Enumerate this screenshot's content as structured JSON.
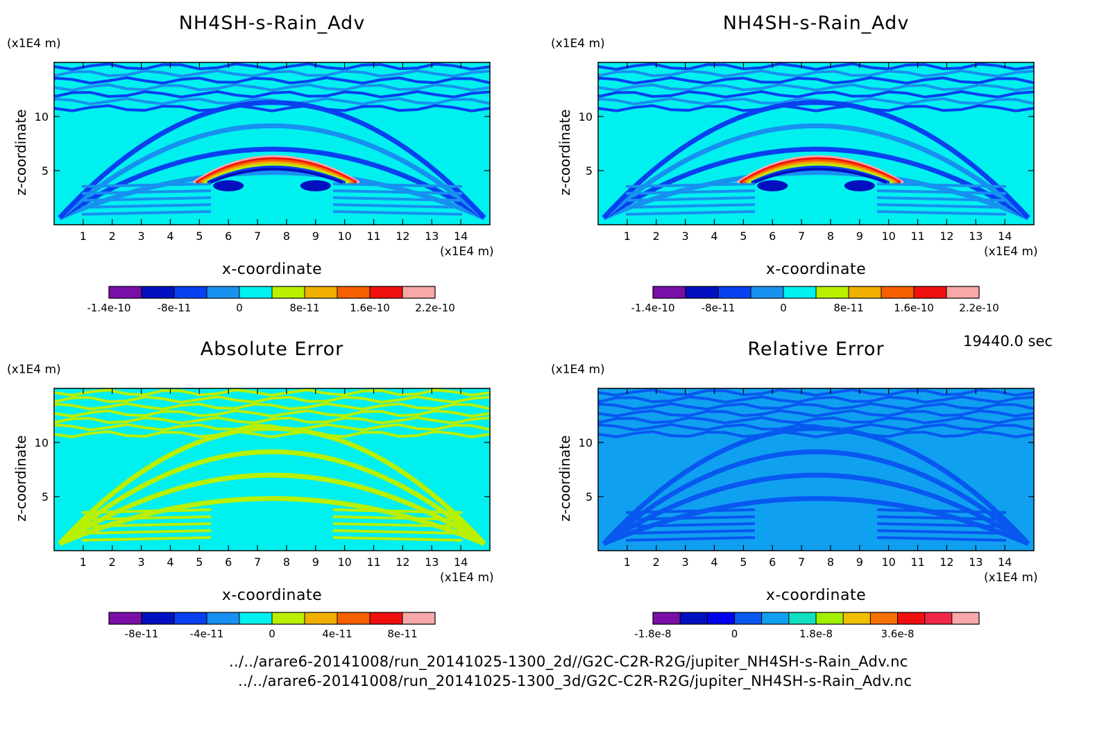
{
  "time_label": "19440.0 sec",
  "files": [
    "../../arare6-20141008/run_20141025-1300_2d//G2C-C2R-R2G/jupiter_NH4SH-s-Rain_Adv.nc",
    "../../arare6-20141008/run_20141025-1300_3d/G2C-C2R-R2G/jupiter_NH4SH-s-Rain_Adv.nc"
  ],
  "chart_data": [
    {
      "type": "heatmap",
      "title": "NH4SH-s-Rain_Adv",
      "xlabel": "x-coordinate",
      "ylabel": "z-coordinate",
      "x_unit": "(x1E4 m)",
      "y_unit": "(x1E4 m)",
      "xlim": [
        0,
        15
      ],
      "ylim": [
        0,
        15
      ],
      "x_ticks": [
        "1",
        "2",
        "3",
        "4",
        "5",
        "6",
        "7",
        "8",
        "9",
        "10",
        "11",
        "12",
        "13",
        "14"
      ],
      "y_ticks": [
        "5",
        "10"
      ],
      "colorbar": {
        "colors": [
          "#7a0fa8",
          "#0010c0",
          "#0840f0",
          "#1890f0",
          "#00f0f0",
          "#b8f000",
          "#f0b000",
          "#f86000",
          "#f01010",
          "#f8a8a8"
        ],
        "labels": [
          "-1.4e-10",
          "-8e-11",
          "0",
          "8e-11",
          "1.6e-10",
          "2.2e-10"
        ]
      }
    },
    {
      "type": "heatmap",
      "title": "NH4SH-s-Rain_Adv",
      "xlabel": "x-coordinate",
      "ylabel": "z-coordinate",
      "x_unit": "(x1E4 m)",
      "y_unit": "(x1E4 m)",
      "xlim": [
        0,
        15
      ],
      "ylim": [
        0,
        15
      ],
      "x_ticks": [
        "1",
        "2",
        "3",
        "4",
        "5",
        "6",
        "7",
        "8",
        "9",
        "10",
        "11",
        "12",
        "13",
        "14"
      ],
      "y_ticks": [
        "5",
        "10"
      ],
      "colorbar": {
        "colors": [
          "#7a0fa8",
          "#0010c0",
          "#0840f0",
          "#1890f0",
          "#00f0f0",
          "#b8f000",
          "#f0b000",
          "#f86000",
          "#f01010",
          "#f8a8a8"
        ],
        "labels": [
          "-1.4e-10",
          "-8e-11",
          "0",
          "8e-11",
          "1.6e-10",
          "2.2e-10"
        ]
      }
    },
    {
      "type": "heatmap",
      "title": "Absolute Error",
      "xlabel": "x-coordinate",
      "ylabel": "z-coordinate",
      "x_unit": "(x1E4 m)",
      "y_unit": "(x1E4 m)",
      "xlim": [
        0,
        15
      ],
      "ylim": [
        0,
        15
      ],
      "x_ticks": [
        "1",
        "2",
        "3",
        "4",
        "5",
        "6",
        "7",
        "8",
        "9",
        "10",
        "11",
        "12",
        "13",
        "14"
      ],
      "y_ticks": [
        "5",
        "10"
      ],
      "colorbar": {
        "colors": [
          "#7a0fa8",
          "#0010c0",
          "#0840f0",
          "#1890f0",
          "#00f0f0",
          "#b8f000",
          "#f0b000",
          "#f86000",
          "#f01010",
          "#f8a8a8"
        ],
        "labels": [
          "-8e-11",
          "-4e-11",
          "0",
          "4e-11",
          "8e-11"
        ]
      }
    },
    {
      "type": "heatmap",
      "title": "Relative Error",
      "xlabel": "x-coordinate",
      "ylabel": "z-coordinate",
      "x_unit": "(x1E4 m)",
      "y_unit": "(x1E4 m)",
      "xlim": [
        0,
        15
      ],
      "ylim": [
        0,
        15
      ],
      "x_ticks": [
        "1",
        "2",
        "3",
        "4",
        "5",
        "6",
        "7",
        "8",
        "9",
        "10",
        "11",
        "12",
        "13",
        "14"
      ],
      "y_ticks": [
        "5",
        "10"
      ],
      "colorbar": {
        "colors": [
          "#7a0fa8",
          "#0010c0",
          "#0000f0",
          "#0858f0",
          "#10a0f0",
          "#10e0c0",
          "#a0f000",
          "#f0c000",
          "#f87000",
          "#f01010",
          "#f02848",
          "#f8a8a8"
        ],
        "labels": [
          "-1.8e-8",
          "0",
          "1.8e-8",
          "3.6e-8"
        ]
      }
    }
  ]
}
